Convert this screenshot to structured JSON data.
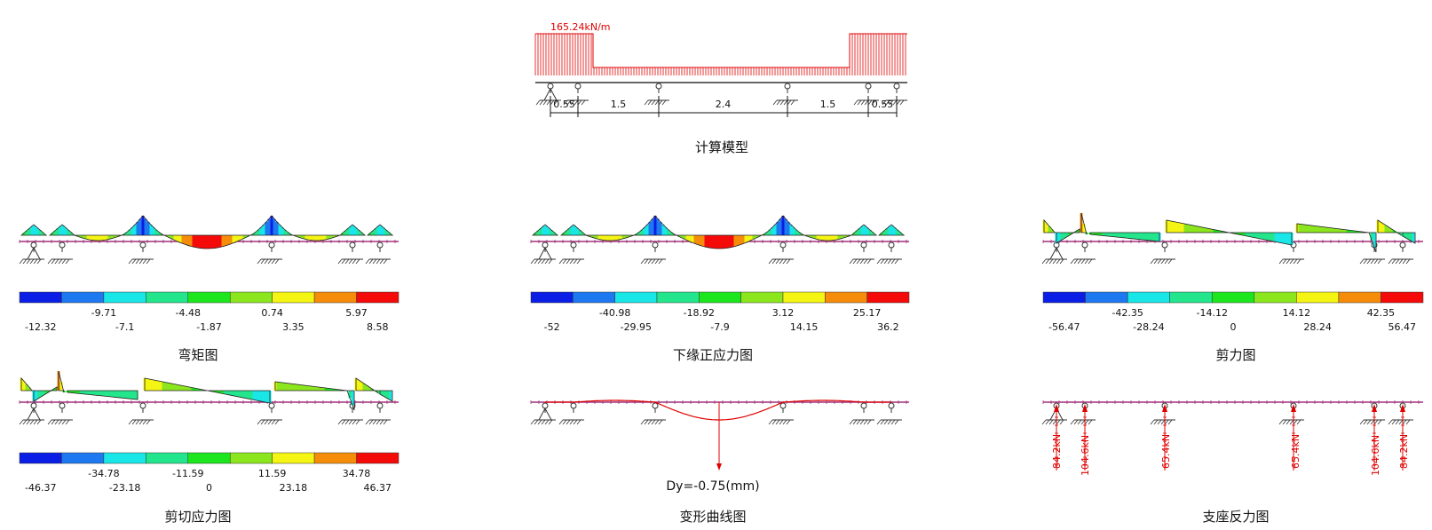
{
  "model": {
    "load_label": "165.24kN/m",
    "spans": [
      "0.55",
      "1.5",
      "2.4",
      "1.5",
      "0.55"
    ],
    "caption": "计算模型"
  },
  "palette": [
    "#0a1ee6",
    "#1e78f0",
    "#19e6e6",
    "#23e68c",
    "#1ee61e",
    "#8ce61e",
    "#f5f514",
    "#f58c0a",
    "#f50a0a"
  ],
  "panels": {
    "moment": {
      "caption": "弯矩图",
      "legend_top": [
        "-9.71",
        "-4.48",
        "0.74",
        "5.97"
      ],
      "legend_bottom": [
        "-12.32",
        "-7.1",
        "-1.87",
        "3.35",
        "8.58"
      ]
    },
    "stress": {
      "caption": "下缘正应力图",
      "legend_top": [
        "-40.98",
        "-18.92",
        "3.12",
        "25.17"
      ],
      "legend_bottom": [
        "-52",
        "-29.95",
        "-7.9",
        "14.15",
        "36.2"
      ]
    },
    "shear": {
      "caption": "剪力图",
      "legend_top": [
        "-42.35",
        "-14.12",
        "14.12",
        "42.35"
      ],
      "legend_bottom": [
        "-56.47",
        "-28.24",
        "0",
        "28.24",
        "56.47"
      ]
    },
    "shear_stress": {
      "caption": "剪切应力图",
      "legend_top": [
        "-34.78",
        "-11.59",
        "11.59",
        "34.78"
      ],
      "legend_bottom": [
        "-46.37",
        "-23.18",
        "0",
        "23.18",
        "46.37"
      ]
    },
    "deform": {
      "caption": "变形曲线图",
      "label": "Dy=-0.75(mm)"
    },
    "reaction": {
      "caption": "支座反力图",
      "labels": [
        "84.2kN",
        "104.6kN",
        "65.4kN",
        "65.4kN",
        "104.6kN",
        "84.2kN"
      ]
    }
  }
}
